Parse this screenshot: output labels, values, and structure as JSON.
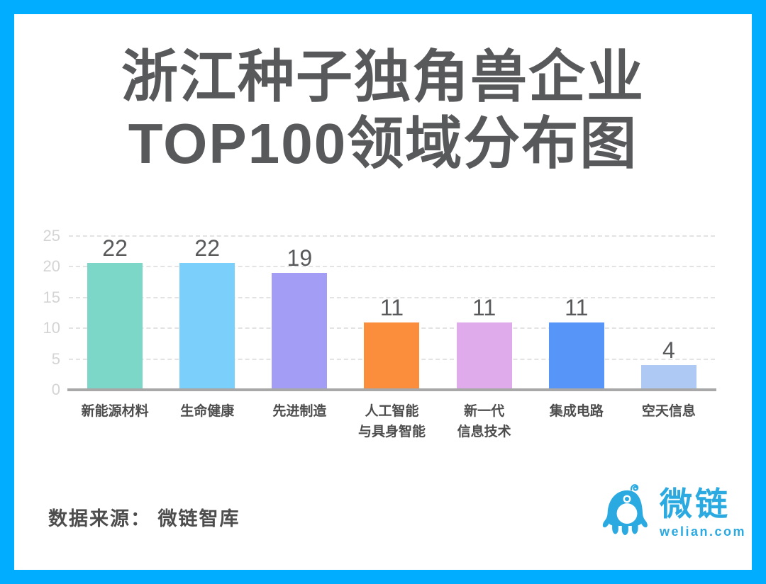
{
  "title": {
    "line1": "浙江种子独角兽企业",
    "line2": "TOP100领域分布图"
  },
  "chart_data": {
    "type": "bar",
    "title": "浙江种子独角兽企业TOP100领域分布图",
    "categories": [
      "新能源材料",
      "生命健康",
      "先进制造",
      "人工智能\n与具身智能",
      "新一代\n信息技术",
      "集成电路",
      "空天信息"
    ],
    "values": [
      22,
      22,
      19,
      11,
      11,
      11,
      4
    ],
    "bar_colors": [
      "#7CD7C9",
      "#7BD0FB",
      "#A49DF6",
      "#FB8E3C",
      "#DFABEA",
      "#5795F8",
      "#ADC9F4"
    ],
    "xlabel": "",
    "ylabel": "",
    "ylim": [
      0,
      25
    ],
    "yticks": [
      0,
      5,
      10,
      15,
      20,
      25
    ],
    "grid": "horizontal-dashed",
    "legend": "none",
    "value_labels": "above-bars"
  },
  "footer": {
    "source_text": "数据来源： 微链智库"
  },
  "logo": {
    "name": "微链",
    "domain": "welian.com",
    "color": "#2BA9E1"
  },
  "frame": {
    "border_color": "#00ADFF"
  }
}
